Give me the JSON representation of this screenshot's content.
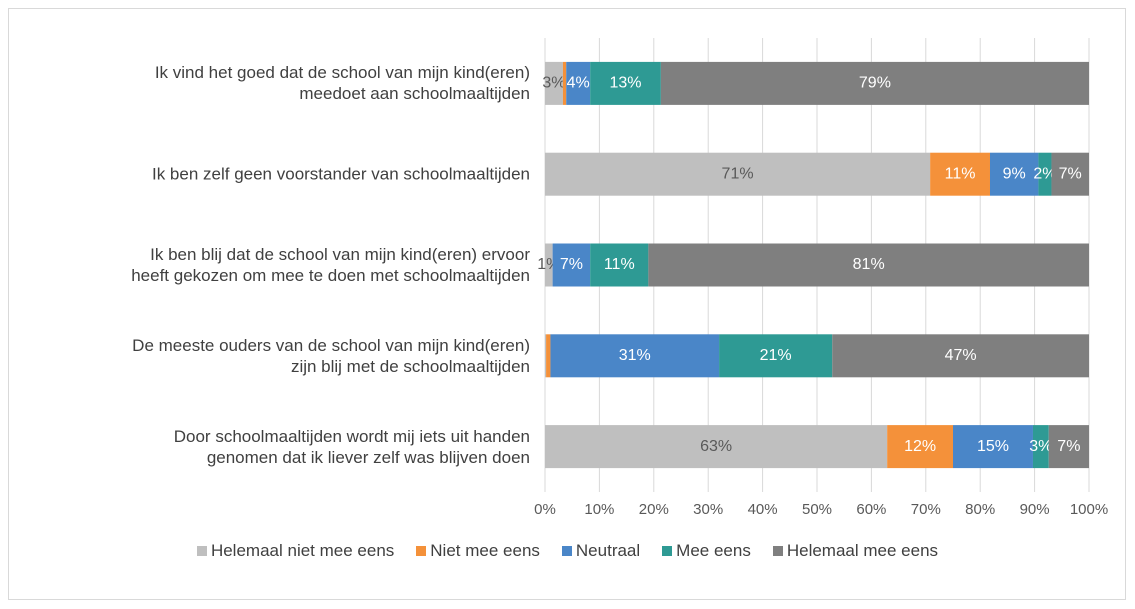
{
  "chart_data": {
    "type": "stacked-barh",
    "categories": [
      "Ik vind het goed dat de school van mijn kind(eren)\nmeedoet aan schoolmaaltijden",
      "Ik ben zelf geen voorstander van schoolmaaltijden",
      "Ik ben blij dat de school van mijn kind(eren) ervoor\nheeft gekozen om mee te doen met schoolmaaltijden",
      "De meeste ouders van de school van mijn kind(eren)\nzijn blij met de schoolmaaltijden",
      "Door schoolmaaltijden wordt mij iets uit handen\ngenomen dat ik liever zelf was blijven doen"
    ],
    "series": [
      {
        "name": "Helemaal niet mee eens",
        "color": "#bfbfbf",
        "values": [
          3.3,
          70.8,
          1.4,
          0.2,
          62.9
        ],
        "value_labels": [
          "3%",
          "71%",
          "1%",
          null,
          "63%"
        ]
      },
      {
        "name": "Niet mee eens",
        "color": "#f4913a",
        "values": [
          0.6,
          11.0,
          0,
          0.8,
          12.1
        ],
        "value_labels": [
          null,
          "11%",
          null,
          null,
          "12%"
        ]
      },
      {
        "name": "Neutraal",
        "color": "#4a86c8",
        "values": [
          4.4,
          8.9,
          6.9,
          31.0,
          14.7
        ],
        "value_labels": [
          "4%",
          "9%",
          "7%",
          "31%",
          "15%"
        ]
      },
      {
        "name": "Mee eens",
        "color": "#2e9a94",
        "values": [
          13.0,
          2.4,
          10.7,
          20.8,
          2.9
        ],
        "value_labels": [
          "13%",
          "2%",
          "11%",
          "21%",
          "3%"
        ]
      },
      {
        "name": "Helemaal mee eens",
        "color": "#7f7f7f",
        "values": [
          78.7,
          6.9,
          81.0,
          47.2,
          7.4
        ],
        "value_labels": [
          "79%",
          "7%",
          "81%",
          "47%",
          "7%"
        ]
      }
    ],
    "xlim": [
      0,
      100
    ],
    "xticks": [
      {
        "value": 0,
        "label": "0%"
      },
      {
        "value": 10,
        "label": "10%"
      },
      {
        "value": 20,
        "label": "20%"
      },
      {
        "value": 30,
        "label": "30%"
      },
      {
        "value": 40,
        "label": "40%"
      },
      {
        "value": 50,
        "label": "50%"
      },
      {
        "value": 60,
        "label": "60%"
      },
      {
        "value": 70,
        "label": "70%"
      },
      {
        "value": 80,
        "label": "80%"
      },
      {
        "value": 90,
        "label": "90%"
      },
      {
        "value": 100,
        "label": "100%"
      }
    ],
    "grid": true,
    "legend": "bottom"
  }
}
